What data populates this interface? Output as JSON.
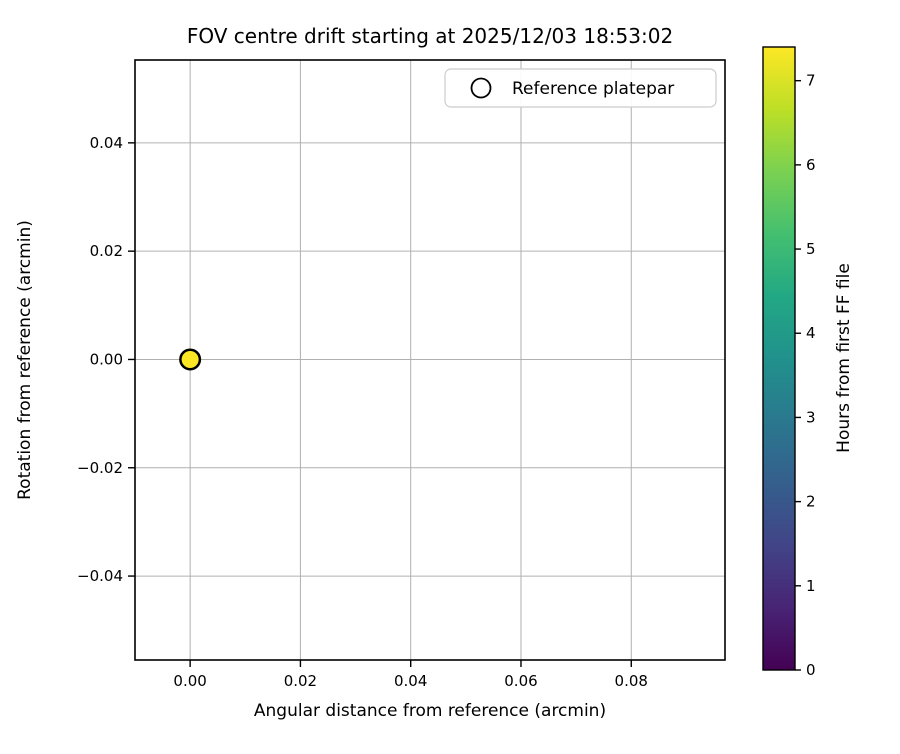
{
  "chart_data": {
    "type": "scatter",
    "title": "FOV centre drift starting at 2025/12/03 18:53:02",
    "xlabel": "Angular distance from reference (arcmin)",
    "ylabel": "Rotation from reference (arcmin)",
    "xlim": [
      -0.01,
      0.097
    ],
    "ylim": [
      -0.0555,
      0.0553
    ],
    "xticks": [
      0.0,
      0.02,
      0.04,
      0.06,
      0.08
    ],
    "yticks": [
      -0.04,
      -0.02,
      0.0,
      0.02,
      0.04
    ],
    "grid": true,
    "grid_color": "#b0b0b0",
    "legend": {
      "position": "upper right",
      "entries": [
        {
          "label": "Reference platepar",
          "marker": "open-circle"
        }
      ]
    },
    "points": [
      {
        "x": 0.0,
        "y": 0.0,
        "color_value": 7.4
      }
    ],
    "reference_point": {
      "x": 0.0,
      "y": 0.0,
      "marker": "open-circle"
    },
    "colorbar": {
      "label": "Hours from first FF file",
      "ticks": [
        0,
        1,
        2,
        3,
        4,
        5,
        6,
        7
      ],
      "vmin": 0,
      "vmax": 7.4,
      "colormap": "viridis",
      "colormap_stops": [
        "#440154",
        "#482475",
        "#414487",
        "#355f8d",
        "#2a788e",
        "#21918c",
        "#22a884",
        "#44bf70",
        "#7ad151",
        "#bddf26",
        "#fde725"
      ]
    }
  }
}
